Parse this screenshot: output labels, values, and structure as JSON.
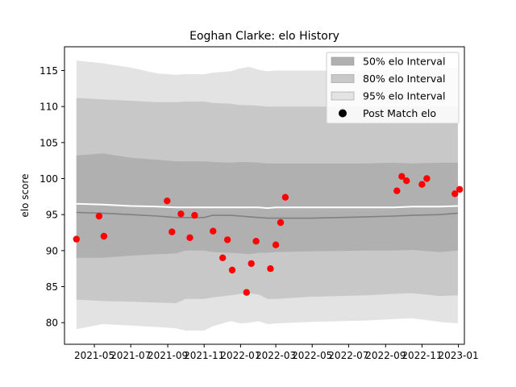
{
  "chart_data": {
    "type": "scatter",
    "title": "Eoghan Clarke: elo History",
    "xlabel": "",
    "ylabel": "elo score",
    "xlim": [
      "2021-03-12",
      "2023-01-11"
    ],
    "ylim": [
      77.0,
      118.3
    ],
    "x_ticks": [
      "2021-05",
      "2021-07",
      "2021-09",
      "2021-11",
      "2022-01",
      "2022-03",
      "2022-05",
      "2022-07",
      "2022-09",
      "2022-11",
      "2023-01"
    ],
    "y_ticks": [
      80,
      85,
      90,
      95,
      100,
      105,
      110,
      115
    ],
    "grid": false,
    "legend_position": "top-right",
    "legend": [
      {
        "label": "50% elo Interval",
        "kind": "band",
        "color": "#b0b0b0"
      },
      {
        "label": "80% elo Interval",
        "kind": "band",
        "color": "#c8c8c8"
      },
      {
        "label": "95% elo Interval",
        "kind": "band",
        "color": "#e3e3e3"
      },
      {
        "label": "Post Match elo",
        "kind": "marker",
        "color": "#000000"
      }
    ],
    "x_dates": [
      "2021-04-01",
      "2021-05-15",
      "2021-07-01",
      "2021-08-15",
      "2021-09-15",
      "2021-10-01",
      "2021-11-01",
      "2021-11-15",
      "2021-12-15",
      "2022-01-01",
      "2022-01-15",
      "2022-02-01",
      "2022-02-15",
      "2022-03-01",
      "2022-05-01",
      "2022-08-01",
      "2022-09-15",
      "2022-10-15",
      "2022-12-01",
      "2022-12-31"
    ],
    "bands": {
      "median": [
        96.5,
        96.4,
        96.2,
        96.1,
        96.0,
        96.0,
        96.0,
        96.0,
        96.0,
        96.0,
        96.0,
        96.0,
        95.9,
        96.0,
        96.0,
        96.0,
        96.0,
        96.1,
        96.1,
        96.2
      ],
      "mean": [
        95.3,
        95.2,
        95.0,
        94.8,
        94.6,
        94.6,
        94.6,
        94.9,
        94.9,
        94.8,
        94.7,
        94.6,
        94.5,
        94.5,
        94.5,
        94.7,
        94.8,
        94.9,
        95.0,
        95.2
      ],
      "p50_low": [
        89.0,
        89.0,
        89.3,
        89.5,
        89.6,
        90.0,
        90.0,
        89.8,
        89.7,
        89.6,
        89.5,
        89.7,
        89.7,
        89.8,
        89.9,
        90.0,
        90.0,
        90.1,
        89.8,
        90.0
      ],
      "p50_high": [
        103.2,
        103.5,
        102.9,
        102.6,
        102.4,
        102.4,
        102.4,
        102.3,
        102.2,
        102.3,
        102.3,
        102.2,
        102.1,
        102.1,
        102.1,
        102.1,
        102.2,
        102.1,
        102.2,
        102.2
      ],
      "p80_low": [
        83.2,
        83.0,
        82.9,
        82.8,
        82.7,
        83.3,
        83.3,
        83.5,
        83.8,
        84.0,
        84.1,
        83.9,
        83.3,
        83.3,
        83.6,
        83.8,
        84.0,
        84.1,
        83.7,
        83.8
      ],
      "p80_high": [
        111.2,
        111.0,
        110.8,
        110.6,
        110.6,
        110.7,
        110.7,
        110.5,
        110.4,
        110.2,
        110.2,
        110.1,
        110.0,
        110.0,
        110.0,
        110.0,
        110.0,
        110.0,
        110.0,
        110.0
      ],
      "p95_low": [
        79.1,
        79.8,
        79.6,
        79.4,
        79.2,
        78.9,
        78.9,
        79.5,
        80.2,
        79.9,
        80.0,
        80.2,
        79.8,
        79.9,
        80.1,
        80.3,
        80.5,
        80.6,
        80.1,
        79.9
      ],
      "p95_high": [
        116.4,
        116.0,
        115.4,
        114.6,
        114.4,
        114.5,
        114.5,
        114.7,
        114.9,
        115.3,
        115.5,
        115.1,
        114.9,
        115.0,
        115.0,
        115.0,
        115.1,
        115.2,
        115.3,
        115.4
      ]
    },
    "series": [
      {
        "name": "Post Match elo",
        "color": "#ff0000",
        "x": [
          "2021-04-01",
          "2021-05-09",
          "2021-05-17",
          "2021-08-31",
          "2021-09-08",
          "2021-09-23",
          "2021-10-08",
          "2021-10-16",
          "2021-11-16",
          "2021-12-02",
          "2021-12-10",
          "2021-12-18",
          "2022-01-11",
          "2022-01-19",
          "2022-01-27",
          "2022-02-20",
          "2022-03-01",
          "2022-03-09",
          "2022-03-17",
          "2022-09-20",
          "2022-09-28",
          "2022-10-06",
          "2022-11-01",
          "2022-11-09",
          "2022-12-26",
          "2023-01-03"
        ],
        "y": [
          91.6,
          94.8,
          92.0,
          96.9,
          92.6,
          95.1,
          91.8,
          94.9,
          92.7,
          89.0,
          91.5,
          87.3,
          84.2,
          88.2,
          91.3,
          87.5,
          90.8,
          93.9,
          97.4,
          98.3,
          100.3,
          99.7,
          99.2,
          100.0,
          97.9,
          98.5
        ]
      }
    ]
  }
}
